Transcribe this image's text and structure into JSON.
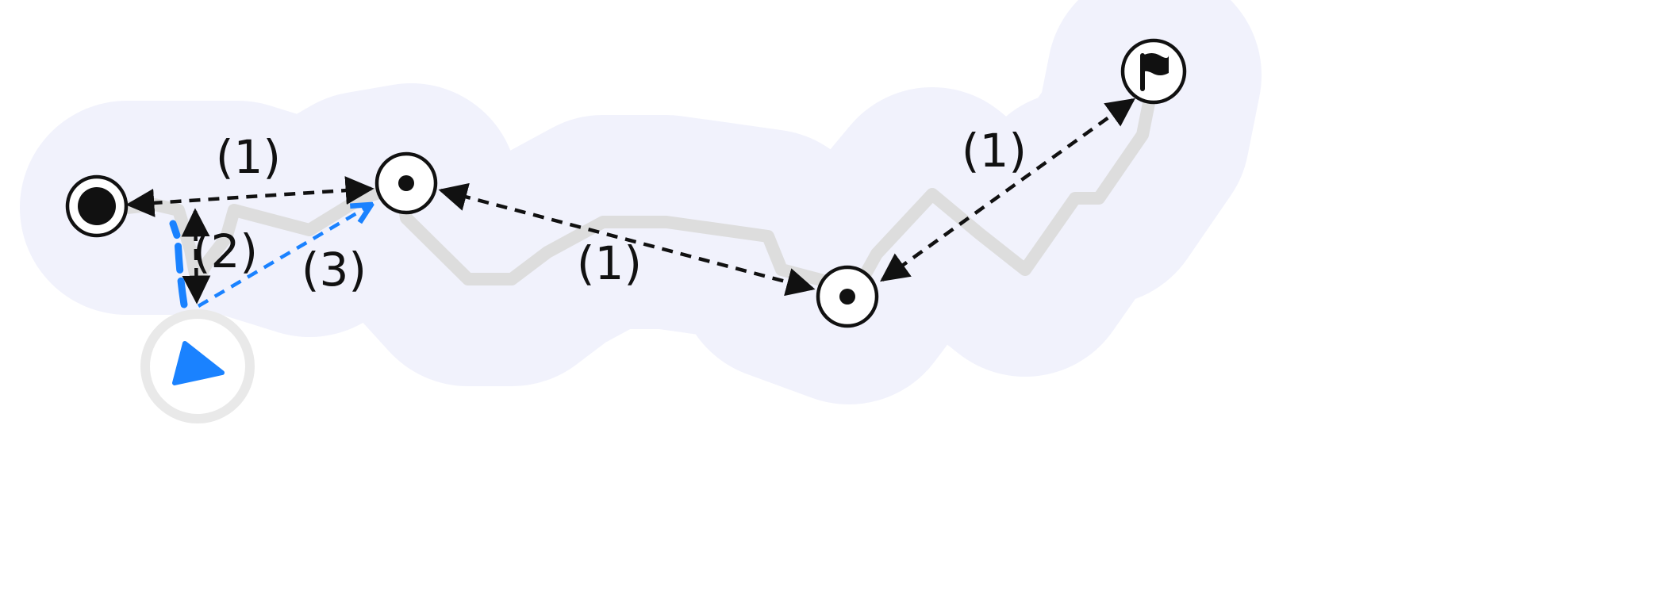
{
  "labels": {
    "seg_1_top": "(1)",
    "seg_2": "(2)",
    "seg_3": "(3)",
    "seg_1_middle": "(1)",
    "seg_1_right": "(1)"
  },
  "colors": {
    "corridor": "#f1f2fc",
    "track": "#dddddd",
    "arrow": "#111111",
    "current_position": "#1a82ff",
    "current_ring": "#e9e9e9",
    "waypoint_fill": "#ffffff",
    "waypoint_stroke": "#111111"
  },
  "icons": {
    "start": "filled-circle-icon",
    "waypoint": "dot-in-circle-icon",
    "finish": "flag-icon",
    "current_position": "navigation-arrow-icon"
  }
}
